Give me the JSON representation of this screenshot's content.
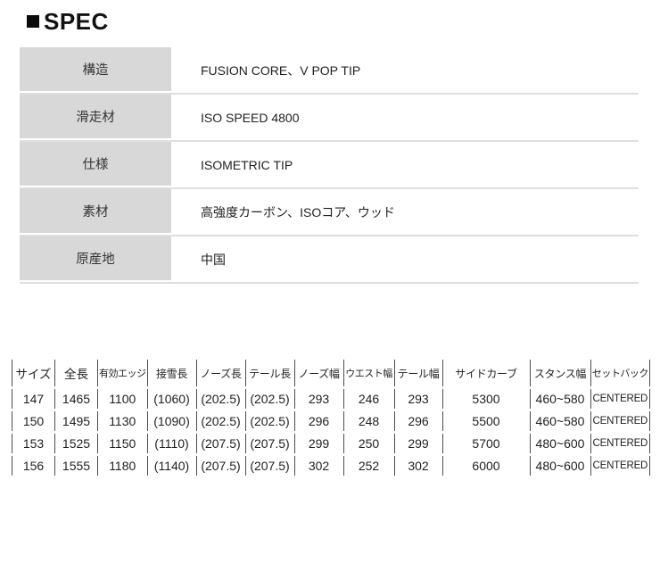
{
  "heading": "SPEC",
  "spec_table": {
    "rows": [
      {
        "label": "構造",
        "value": "FUSION CORE、V POP TIP"
      },
      {
        "label": "滑走材",
        "value": "ISO SPEED 4800"
      },
      {
        "label": "仕様",
        "value": "ISOMETRIC TIP"
      },
      {
        "label": "素材",
        "value": "高強度カーボン、ISOコア、ウッド"
      },
      {
        "label": "原産地",
        "value": "中国"
      }
    ]
  },
  "size_table": {
    "columns": [
      "サイズ",
      "全長",
      "有効エッジ",
      "接雪長",
      "ノーズ長",
      "テール長",
      "ノーズ幅",
      "ウエスト幅",
      "テール幅",
      "サイドカーブ",
      "スタンス幅",
      "セットバック"
    ],
    "rows": [
      [
        "147",
        "1465",
        "1100",
        "(1060)",
        "(202.5)",
        "(202.5)",
        "293",
        "246",
        "293",
        "5300",
        "460~580",
        "CENTERED"
      ],
      [
        "150",
        "1495",
        "1130",
        "(1090)",
        "(202.5)",
        "(202.5)",
        "296",
        "248",
        "296",
        "5500",
        "460~580",
        "CENTERED"
      ],
      [
        "153",
        "1525",
        "1150",
        "(1110)",
        "(207.5)",
        "(207.5)",
        "299",
        "250",
        "299",
        "5700",
        "480~600",
        "CENTERED"
      ],
      [
        "156",
        "1555",
        "1180",
        "(1140)",
        "(207.5)",
        "(207.5)",
        "302",
        "252",
        "302",
        "6000",
        "480~600",
        "CENTERED"
      ]
    ]
  },
  "colors": {
    "label_cell_bg": "#d8d8d8",
    "row_divider": "#dedede",
    "table_border": "#4d4d4d",
    "heading_square": "#0a0a0a"
  }
}
